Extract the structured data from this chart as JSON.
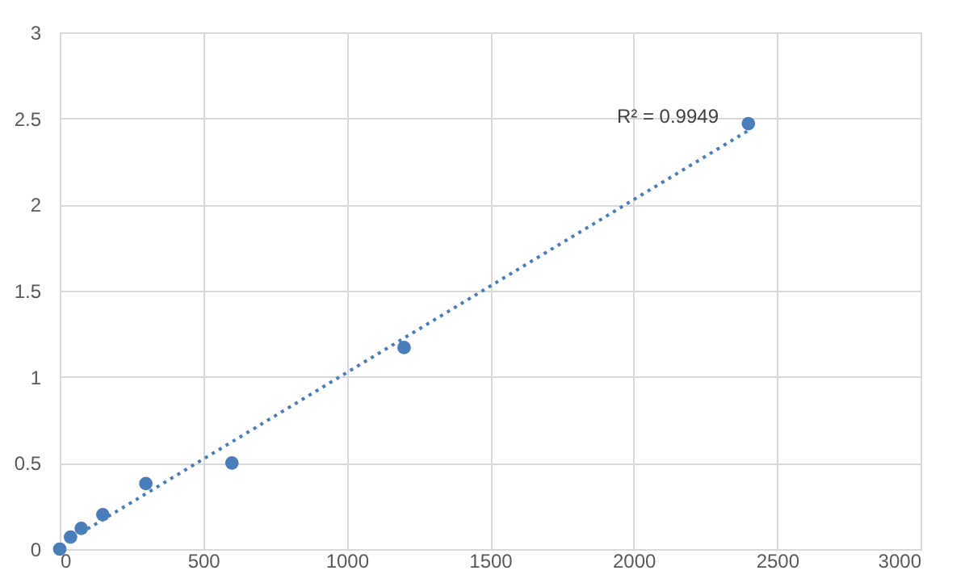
{
  "chart_data": {
    "type": "scatter",
    "xlim": [
      0,
      3000
    ],
    "xticks": [
      0,
      500,
      1000,
      1500,
      2000,
      2500,
      3000
    ],
    "ylim": [
      0,
      3
    ],
    "yticks": [
      0,
      0.5,
      1,
      1.5,
      2,
      2.5,
      3
    ],
    "grid": true,
    "series": [
      {
        "color": "#4a7ebb",
        "marker": "circle",
        "x": [
          0,
          37.5,
          75,
          150,
          300,
          600,
          1200,
          2400
        ],
        "values": [
          0,
          0.07,
          0.12,
          0.2,
          0.38,
          0.5,
          1.17,
          2.47
        ]
      },
      {
        "type": "line",
        "color": "#4a7ebb",
        "marker": "none",
        "line_style": "dotted",
        "x": [
          0,
          2400
        ],
        "values": [
          0.02,
          2.43
        ]
      }
    ],
    "annotations": [
      "R² = 0.9949"
    ]
  }
}
